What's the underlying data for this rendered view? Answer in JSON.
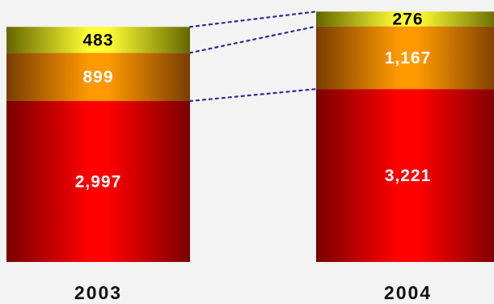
{
  "chart_data": {
    "type": "stacked-bar",
    "categories": [
      "2003",
      "2004"
    ],
    "series": [
      {
        "values": [
          2997,
          3221
        ],
        "color": "#ff0000",
        "edge_color": "#7a0000",
        "label_color": "#ffffff"
      },
      {
        "values": [
          899,
          1167
        ],
        "color": "#ff9900",
        "edge_color": "#7a3e00",
        "label_color": "#ffffff"
      },
      {
        "values": [
          483,
          276
        ],
        "color": "#ffff33",
        "edge_color": "#666600",
        "label_color": "#000000"
      }
    ],
    "labels": [
      [
        "2,997",
        "3,221"
      ],
      [
        "899",
        "1,167"
      ],
      [
        "483",
        "276"
      ]
    ],
    "connector_color": "#2a2a9a",
    "connector_style": "dotted",
    "legend": "none",
    "grid": false
  }
}
